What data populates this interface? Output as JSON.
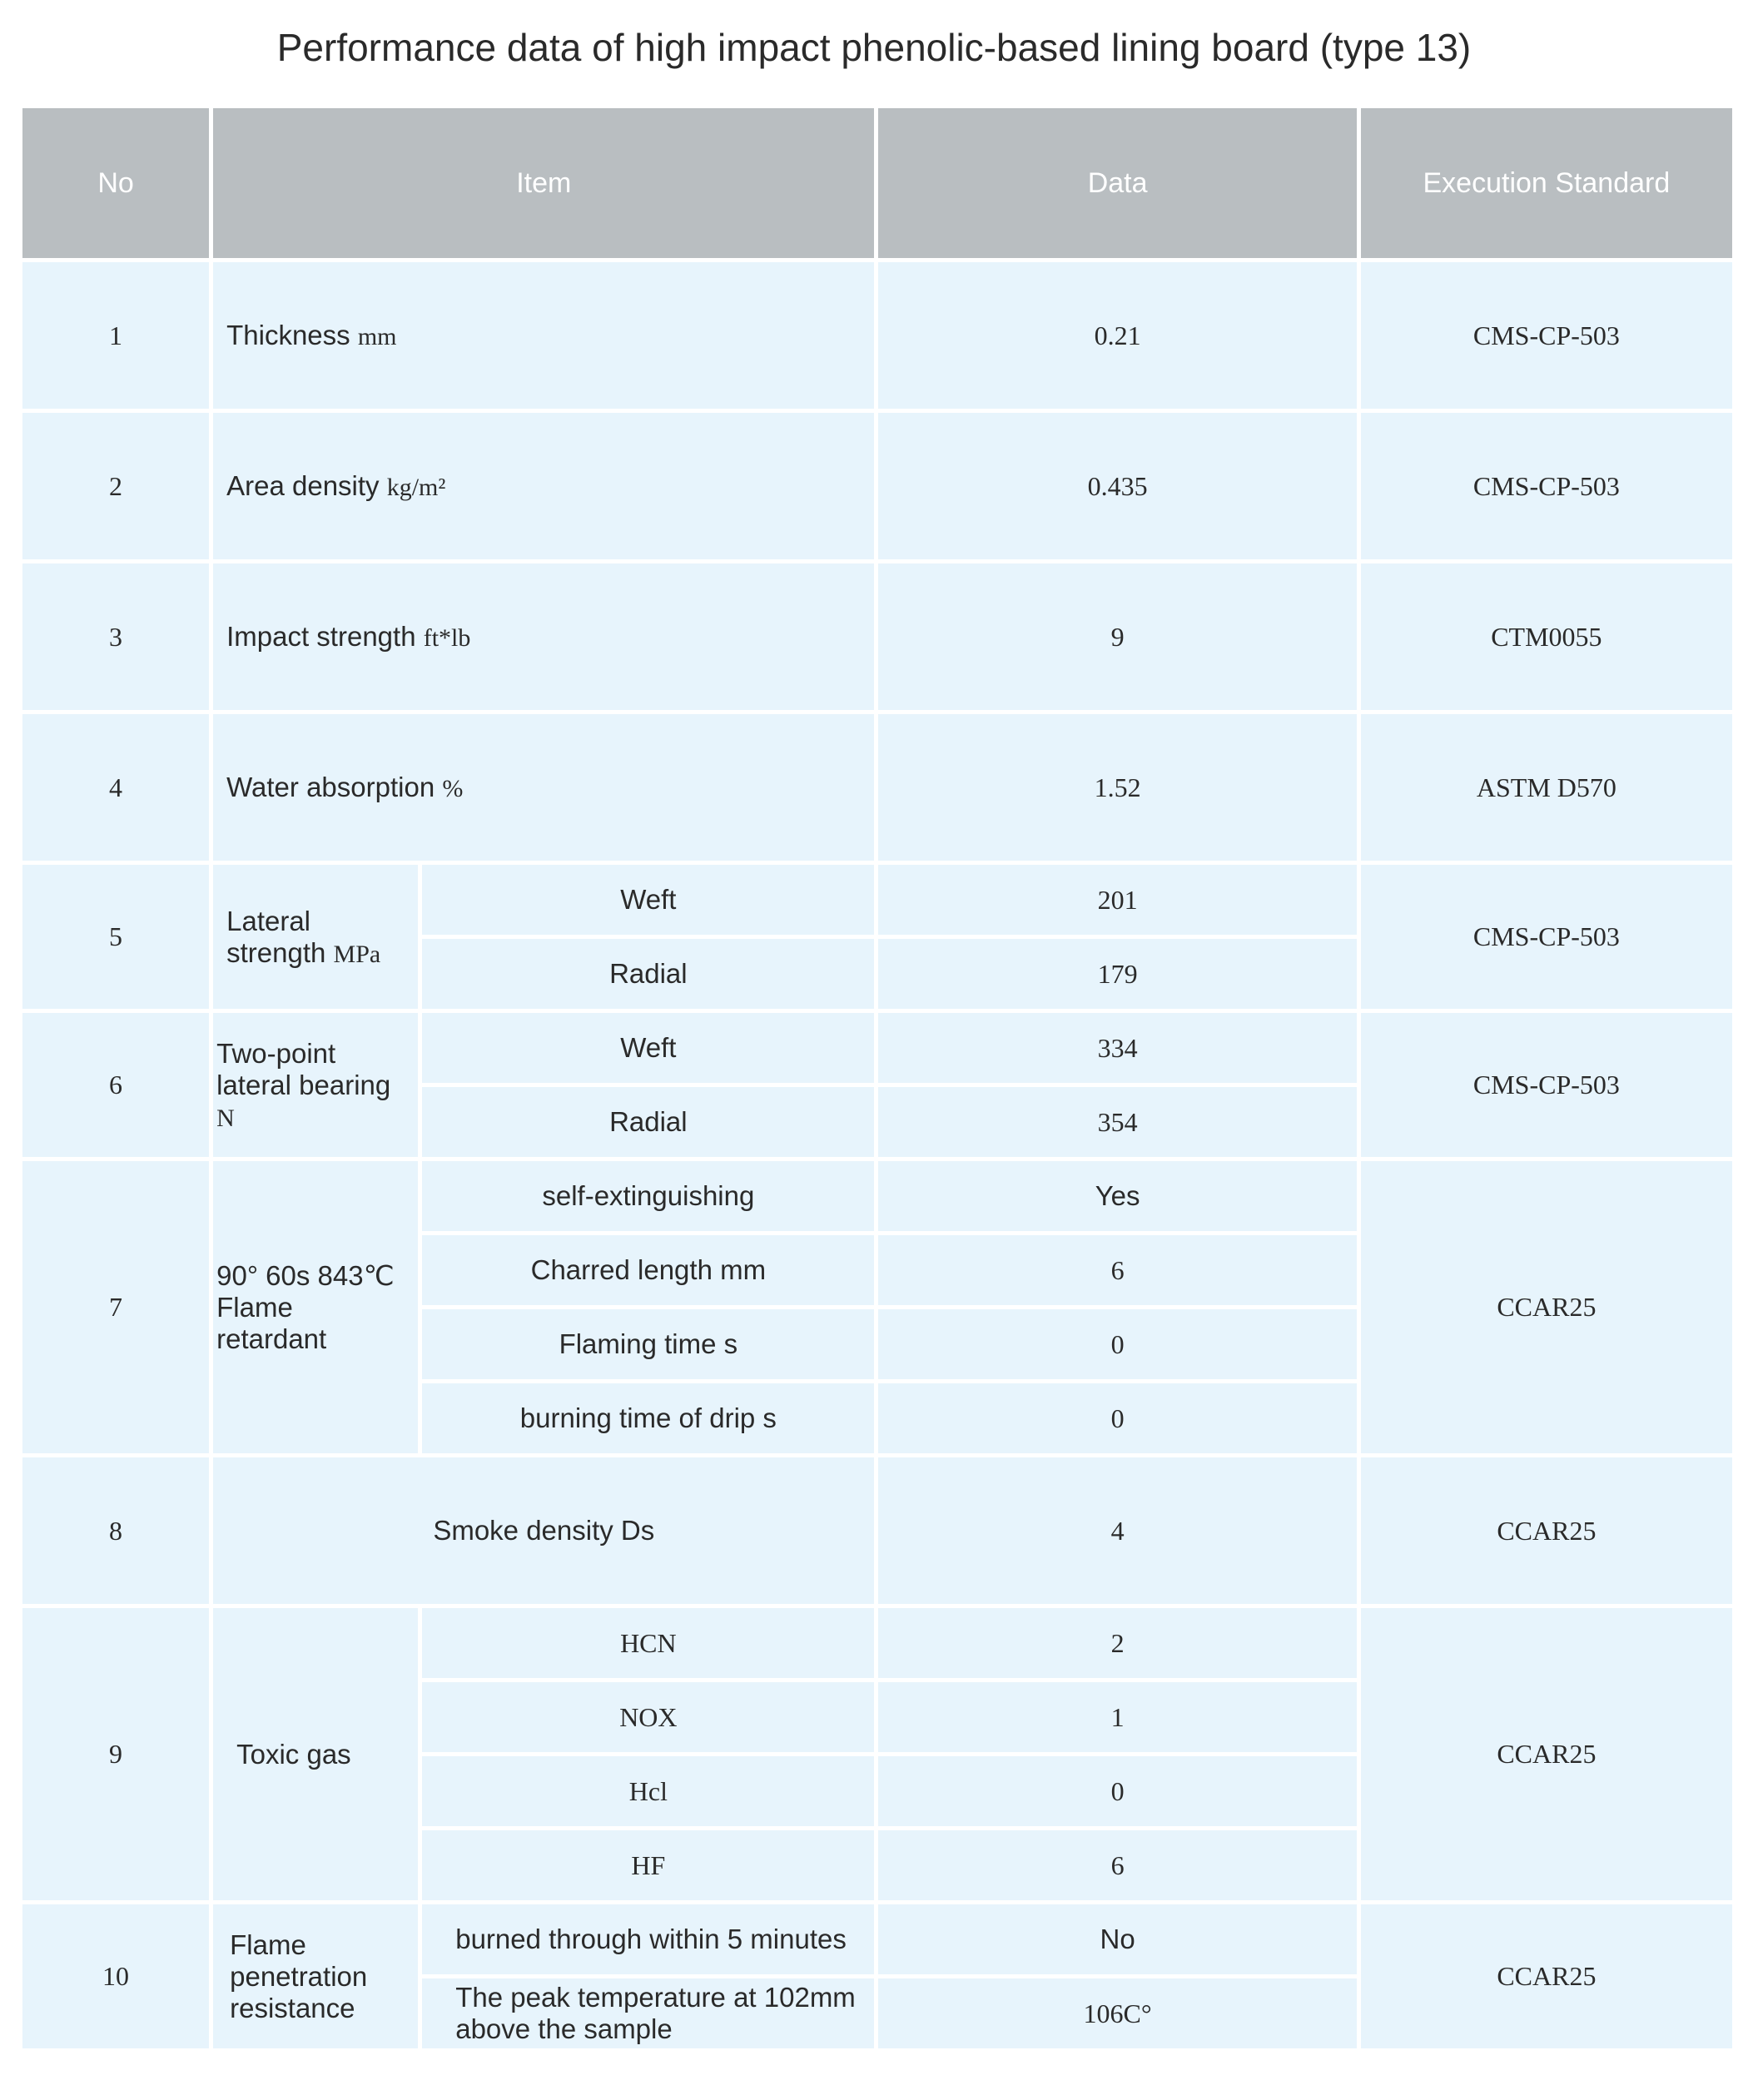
{
  "title": "Performance data of high impact phenolic-based lining board (type 13)",
  "headers": {
    "no": "No",
    "item": "Item",
    "data": "Data",
    "standard": "Execution Standard"
  },
  "rows": {
    "r1": {
      "no": "1",
      "item": "Thickness",
      "unit": "mm",
      "data": "0.21",
      "standard": "CMS-CP-503"
    },
    "r2": {
      "no": "2",
      "item": "Area density",
      "unit": "kg/m²",
      "data": "0.435",
      "standard": "CMS-CP-503"
    },
    "r3": {
      "no": "3",
      "item": "Impact strength",
      "unit": "ft*lb",
      "data": "9",
      "standard": "CTM0055"
    },
    "r4": {
      "no": "4",
      "item": "Water absorption",
      "unit": "%",
      "data": "1.52",
      "standard": "ASTM D570"
    },
    "r5": {
      "no": "5",
      "item": "Lateral strength",
      "unit": "MPa",
      "sub": [
        {
          "label": "Weft",
          "data": "201"
        },
        {
          "label": "Radial",
          "data": "179"
        }
      ],
      "standard": "CMS-CP-503"
    },
    "r6": {
      "no": "6",
      "item": "Two-point lateral bearing",
      "unit": "N",
      "sub": [
        {
          "label": "Weft",
          "data": "334"
        },
        {
          "label": "Radial",
          "data": "354"
        }
      ],
      "standard": "CMS-CP-503"
    },
    "r7": {
      "no": "7",
      "item": "90° 60s 843℃ Flame retardant",
      "sub": [
        {
          "label": "self-extinguishing",
          "data": "Yes"
        },
        {
          "label": "Charred length  mm",
          "data": "6"
        },
        {
          "label": "Flaming time s",
          "data": "0"
        },
        {
          "label": "burning time of drip s",
          "data": "0"
        }
      ],
      "standard": "CCAR25"
    },
    "r8": {
      "no": "8",
      "item": "Smoke density  Ds",
      "data": "4",
      "standard": "CCAR25"
    },
    "r9": {
      "no": "9",
      "item": "Toxic gas",
      "sub": [
        {
          "label": "HCN",
          "data": "2"
        },
        {
          "label": "NOX",
          "data": "1"
        },
        {
          "label": "Hcl",
          "data": "0"
        },
        {
          "label": "HF",
          "data": "6"
        }
      ],
      "standard": "CCAR25"
    },
    "r10": {
      "no": "10",
      "item": "Flame penetration resistance",
      "sub": [
        {
          "label": "burned through within 5 minutes",
          "data": "No"
        },
        {
          "label": "The peak temperature at 102mm above the sample",
          "data": "106C°"
        }
      ],
      "standard": "CCAR25"
    }
  },
  "colors": {
    "header_bg": "#b9bec1",
    "cell_bg": "#e7f4fc",
    "header_text": "#ffffff"
  }
}
